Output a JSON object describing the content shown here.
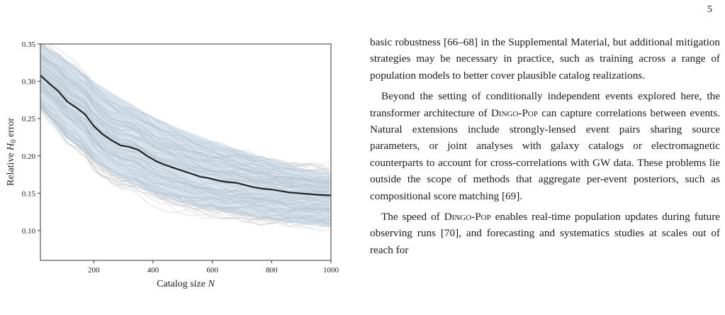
{
  "page": {
    "number": "5"
  },
  "figure": {
    "chart_data": {
      "type": "line",
      "xlabel": "Catalog size N",
      "ylabel": "Relative H0 error",
      "xlim": [
        20,
        1000
      ],
      "ylim": [
        0.06,
        0.35
      ],
      "x_ticks": [
        200,
        400,
        600,
        800,
        1000
      ],
      "y_ticks": [
        0.1,
        0.15,
        0.2,
        0.25,
        0.3,
        0.35
      ],
      "x_tick_labels": [
        "200",
        "400",
        "600",
        "800",
        "1000"
      ],
      "y_tick_labels": [
        "0.10",
        "0.15",
        "0.20",
        "0.25",
        "0.30",
        "0.35"
      ],
      "grid": false,
      "series": [
        {
          "role": "mean",
          "color": "#222222",
          "x": [
            20,
            50,
            80,
            110,
            140,
            170,
            200,
            230,
            260,
            290,
            320,
            350,
            380,
            410,
            440,
            470,
            500,
            530,
            560,
            590,
            620,
            650,
            680,
            710,
            740,
            770,
            800,
            830,
            860,
            890,
            920,
            950,
            1000
          ],
          "y": [
            0.308,
            0.297,
            0.287,
            0.273,
            0.265,
            0.256,
            0.24,
            0.229,
            0.221,
            0.214,
            0.212,
            0.208,
            0.2,
            0.193,
            0.188,
            0.184,
            0.18,
            0.176,
            0.172,
            0.17,
            0.167,
            0.165,
            0.164,
            0.161,
            0.158,
            0.156,
            0.155,
            0.153,
            0.151,
            0.15,
            0.149,
            0.148,
            0.147
          ]
        },
        {
          "role": "band-upper",
          "color": "#a9c3da",
          "x": [
            20,
            100,
            200,
            300,
            400,
            500,
            600,
            700,
            800,
            900,
            1000
          ],
          "y": [
            0.35,
            0.33,
            0.3,
            0.275,
            0.252,
            0.235,
            0.22,
            0.207,
            0.195,
            0.184,
            0.176
          ]
        },
        {
          "role": "band-lower",
          "color": "#a9c3da",
          "x": [
            20,
            100,
            200,
            300,
            400,
            500,
            600,
            700,
            800,
            900,
            1000
          ],
          "y": [
            0.262,
            0.228,
            0.193,
            0.168,
            0.15,
            0.137,
            0.128,
            0.12,
            0.114,
            0.109,
            0.104
          ]
        }
      ],
      "samples": {
        "count": 90,
        "color": "#bfbfbf",
        "description_hidden": true
      }
    }
  },
  "text": {
    "p1": "basic robustness [66–68] in the Supplemental Material, but additional mitigation strategies may be necessary in practice, such as training across a range of population models to better cover plausible catalog realizations.",
    "p2_a": "Beyond the setting of conditionally independent events explored here, the transformer architecture of ",
    "p2_sc": "Dingo-Pop",
    "p2_b": " can capture correlations between events. Natural extensions include strongly-lensed event pairs sharing source parameters, or joint analyses with galaxy catalogs or electromagnetic counterparts to account for cross-correlations with GW data.  These problems lie outside the scope of methods that aggregate per-event posteriors, such as compositional score matching [69].",
    "p3_a": "The speed of ",
    "p3_sc": "Dingo-Pop",
    "p3_b": " enables real-time population updates during future observing runs [70], and forecasting and systematics studies at scales out of reach for"
  }
}
